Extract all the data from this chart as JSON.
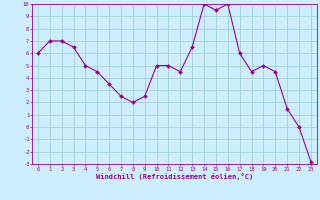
{
  "x": [
    0,
    1,
    2,
    3,
    4,
    5,
    6,
    7,
    8,
    9,
    10,
    11,
    12,
    13,
    14,
    15,
    16,
    17,
    18,
    19,
    20,
    21,
    22,
    23
  ],
  "y": [
    6.0,
    7.0,
    7.0,
    6.5,
    5.0,
    4.5,
    3.5,
    2.5,
    2.0,
    2.5,
    5.0,
    5.0,
    4.5,
    6.5,
    10.0,
    9.5,
    10.0,
    6.0,
    4.5,
    5.0,
    4.5,
    1.5,
    0.0,
    -2.8
  ],
  "line_color": "#990099",
  "marker_color": "#990099",
  "bg_color": "#cceeff",
  "grid_color": "#99cccc",
  "xlabel": "Windchill (Refroidissement éolien,°C)",
  "xlabel_color": "#990099",
  "tick_color": "#990099",
  "spine_color": "#990099",
  "ylim": [
    -3,
    10
  ],
  "xlim": [
    -0.5,
    23.5
  ],
  "yticks": [
    10,
    9,
    8,
    7,
    6,
    5,
    4,
    3,
    2,
    1,
    0,
    -1,
    -2,
    -3
  ],
  "xticks": [
    0,
    1,
    2,
    3,
    4,
    5,
    6,
    7,
    8,
    9,
    10,
    11,
    12,
    13,
    14,
    15,
    16,
    17,
    18,
    19,
    20,
    21,
    22,
    23
  ],
  "figsize": [
    3.2,
    2.0
  ],
  "dpi": 100
}
